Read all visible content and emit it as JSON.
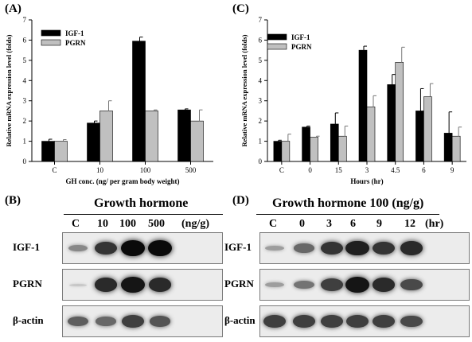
{
  "panels": {
    "A": "(A)",
    "B": "(B)",
    "C": "(C)",
    "D": "(D)"
  },
  "chart_data": [
    {
      "id": "A",
      "type": "bar",
      "categories": [
        "C",
        "10",
        "100",
        "500"
      ],
      "series": [
        {
          "name": "IGF-1",
          "values": [
            1.0,
            1.9,
            5.95,
            2.55
          ],
          "errors": [
            0.1,
            0.1,
            0.2,
            0.05
          ],
          "color": "#000000"
        },
        {
          "name": "PGRN",
          "values": [
            1.0,
            2.5,
            2.5,
            2.0
          ],
          "errors": [
            0.08,
            0.5,
            0.05,
            0.55
          ],
          "color": "#c0c0c0"
        }
      ],
      "xlabel": "GH conc. (ng/ per gram body weight)",
      "ylabel": "Relative mRNA expression level (folds)",
      "ylim": [
        0,
        7
      ],
      "yticks": [
        "0",
        "1",
        "2",
        "3",
        "4",
        "5",
        "6",
        "7"
      ],
      "legend": "top-left",
      "grid": false
    },
    {
      "id": "C",
      "type": "bar",
      "categories": [
        "C",
        "0",
        "15",
        "3",
        "4.5",
        "6",
        "9"
      ],
      "series": [
        {
          "name": "IGF-1",
          "values": [
            1.0,
            1.7,
            1.85,
            5.5,
            3.8,
            2.5,
            1.4
          ],
          "errors": [
            0.05,
            0.05,
            0.55,
            0.2,
            0.5,
            1.1,
            1.05
          ],
          "color": "#000000"
        },
        {
          "name": "PGRN",
          "values": [
            1.0,
            1.2,
            1.25,
            2.7,
            4.9,
            3.2,
            1.25
          ],
          "errors": [
            0.35,
            0.05,
            0.5,
            0.55,
            0.75,
            0.65,
            0.45
          ],
          "color": "#c0c0c0"
        }
      ],
      "xlabel": "Hours (hr)",
      "ylabel": "Relative mRNA expression level (folds)",
      "ylim": [
        0,
        7
      ],
      "yticks": [
        "0",
        "1",
        "2",
        "3",
        "4",
        "5",
        "6",
        "7"
      ],
      "legend": "top-left",
      "grid": false
    }
  ],
  "blotB": {
    "title": "Growth hormone",
    "lanes": [
      "C",
      "10",
      "100",
      "500",
      "(ng/g)"
    ],
    "rows": [
      "IGF-1",
      "PGRN",
      "β-actin"
    ],
    "intensity": {
      "IGF-1": [
        0.4,
        0.8,
        1.0,
        1.0
      ],
      "PGRN": [
        0.1,
        0.85,
        0.95,
        0.85
      ],
      "β-actin": [
        0.6,
        0.55,
        0.75,
        0.65
      ]
    }
  },
  "blotD": {
    "title": "Growth hormone 100 (ng/g)",
    "lanes": [
      "C",
      "0",
      "3",
      "6",
      "9",
      "12",
      "(hr)"
    ],
    "rows": [
      "IGF-1",
      "PGRN",
      "β-actin"
    ],
    "intensity": {
      "IGF-1": [
        0.3,
        0.55,
        0.8,
        0.9,
        0.8,
        0.85
      ],
      "PGRN": [
        0.3,
        0.5,
        0.75,
        0.95,
        0.85,
        0.7
      ],
      "β-actin": [
        0.75,
        0.75,
        0.75,
        0.75,
        0.75,
        0.7
      ]
    }
  }
}
